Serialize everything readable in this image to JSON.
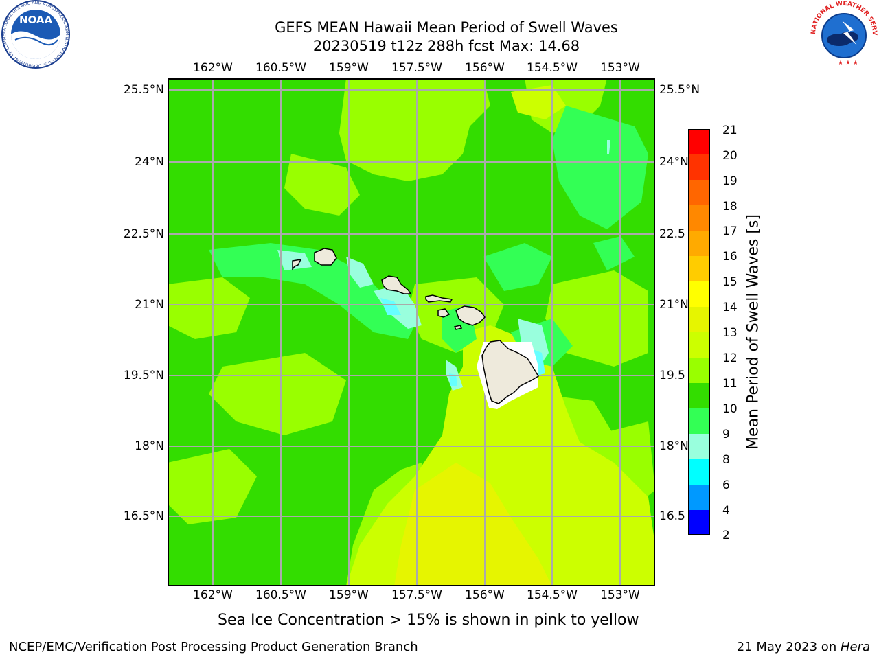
{
  "header": {
    "title_line1": "GEFS MEAN Hawaii Mean Period of Swell Waves",
    "title_line2": "20230519 t12z 288h fcst   Max: 14.68"
  },
  "map": {
    "lon_labels": [
      "162°W",
      "160.5°W",
      "159°W",
      "157.5°W",
      "156°W",
      "154.5°W",
      "153°W"
    ],
    "lat_labels": [
      "25.5°N",
      "24°N",
      "22.5°N",
      "21°N",
      "19.5°N",
      "18°N",
      "16.5°N"
    ],
    "lat_labels_right": [
      "25.5°N",
      "24°N",
      "22.5",
      "21°N",
      "19.5",
      "18°N",
      "16.5"
    ],
    "field": "Mean Period of Swell Waves",
    "max_value": 14.68,
    "islands": [
      "Niihau",
      "Kauai",
      "Oahu",
      "Molokai",
      "Lanai",
      "Maui",
      "Kahoolawe",
      "Hawaii"
    ],
    "land_color": "#eeeadc",
    "grid_color": "#aaaaaa"
  },
  "colorbar": {
    "label": "Mean Period of Swell Waves [s]",
    "ticks": [
      "21",
      "20",
      "19",
      "18",
      "17",
      "16",
      "15",
      "14",
      "13",
      "12",
      "11",
      "10",
      "9",
      "8",
      "6",
      "4",
      "2"
    ],
    "colors": [
      "#ff0000",
      "#ff3300",
      "#ff6600",
      "#ff8800",
      "#ffaa00",
      "#ffcc00",
      "#ffff00",
      "#e6f500",
      "#ccff00",
      "#99ff00",
      "#33dd00",
      "#33ff55",
      "#99ffdd",
      "#66ffff",
      "#00ffff",
      "#0099ff",
      "#0000ff"
    ]
  },
  "note": "Sea Ice Concentration > 15% is shown in pink to yellow",
  "footer": {
    "left": "NCEP/EMC/Verification Post Processing Product Generation Branch",
    "right_prefix": "21 May 2023 on ",
    "right_machine": "Hera"
  },
  "logos": {
    "noaa_text": "NOAA",
    "noaa_ring_text": "NATIONAL OCEANIC AND ATMOSPHERIC ADMINISTRATION · U.S. DEPARTMENT OF COMMERCE",
    "nws_ring_text": "NATIONAL WEATHER SERVICE"
  }
}
